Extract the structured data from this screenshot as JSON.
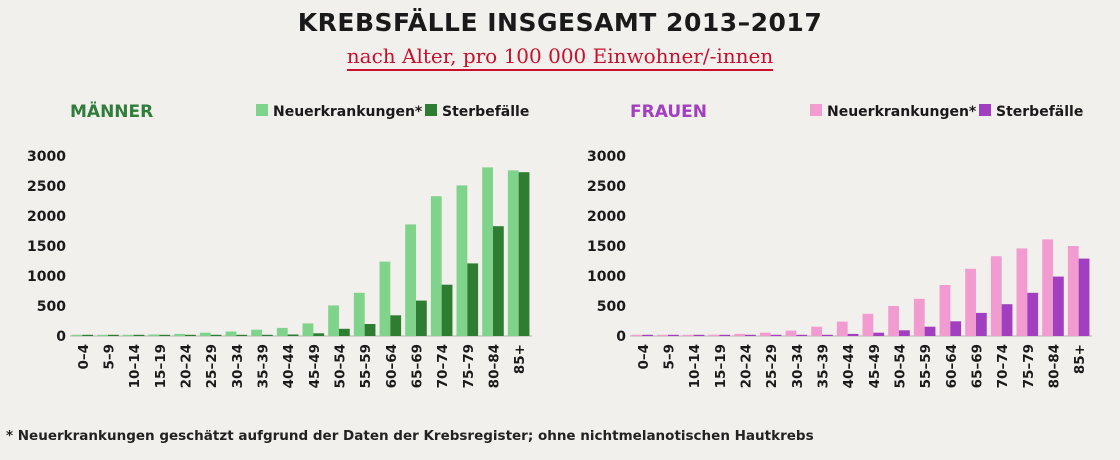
{
  "title": "KREBSFÄLLE INSGESAMT 2013–2017",
  "subtitle": "nach Alter, pro 100 000 Einwohner/-innen",
  "footnote": "* Neuerkrankungen geschätzt aufgrund der Daten der Krebsregister; ohne nichtmelanotischen Hautkrebs",
  "colors": {
    "men_title": "#2e7d3a",
    "men_incidence": "#7fd38a",
    "men_deaths": "#2e7d32",
    "women_title": "#a23fc0",
    "women_incidence": "#f29bd0",
    "women_deaths": "#a23fc0"
  },
  "chart_data": [
    {
      "type": "bar",
      "title": "MÄNNER",
      "categories": [
        "0–4",
        "5–9",
        "10–14",
        "15–19",
        "20–24",
        "25–29",
        "30–34",
        "35–39",
        "40–44",
        "45–49",
        "50–54",
        "55–59",
        "60–64",
        "65–69",
        "70–74",
        "75–79",
        "80–84",
        "85+"
      ],
      "series": [
        {
          "name": "Neuerkrankungen*",
          "values": [
            20,
            12,
            15,
            25,
            35,
            55,
            75,
            105,
            135,
            210,
            510,
            720,
            1240,
            1860,
            2330,
            2510,
            2810,
            2760
          ]
        },
        {
          "name": "Sterbefälle",
          "values": [
            3,
            2,
            2,
            3,
            5,
            5,
            10,
            15,
            25,
            45,
            120,
            200,
            345,
            590,
            855,
            1210,
            1830,
            2730
          ]
        }
      ],
      "yticks": [
        "3000",
        "2500",
        "2000",
        "1500",
        "1000",
        "500",
        "0"
      ],
      "ylim": [
        0,
        3000
      ]
    },
    {
      "type": "bar",
      "title": "FRAUEN",
      "categories": [
        "0–4",
        "5–9",
        "10–14",
        "15–19",
        "20–24",
        "25–29",
        "30–34",
        "35–39",
        "40–44",
        "45–49",
        "50–54",
        "55–59",
        "60–64",
        "65–69",
        "70–74",
        "75–79",
        "80–84",
        "85+"
      ],
      "series": [
        {
          "name": "Neuerkrankungen*",
          "values": [
            20,
            15,
            18,
            22,
            35,
            55,
            90,
            155,
            240,
            370,
            500,
            620,
            850,
            1120,
            1330,
            1460,
            1610,
            1500
          ]
        },
        {
          "name": "Sterbefälle",
          "values": [
            2,
            2,
            2,
            3,
            4,
            6,
            10,
            20,
            35,
            55,
            95,
            155,
            245,
            385,
            530,
            720,
            990,
            1290
          ]
        }
      ],
      "yticks": [
        "3000",
        "2500",
        "2000",
        "1500",
        "1000",
        "500",
        "0"
      ],
      "ylim": [
        0,
        3000
      ]
    }
  ]
}
